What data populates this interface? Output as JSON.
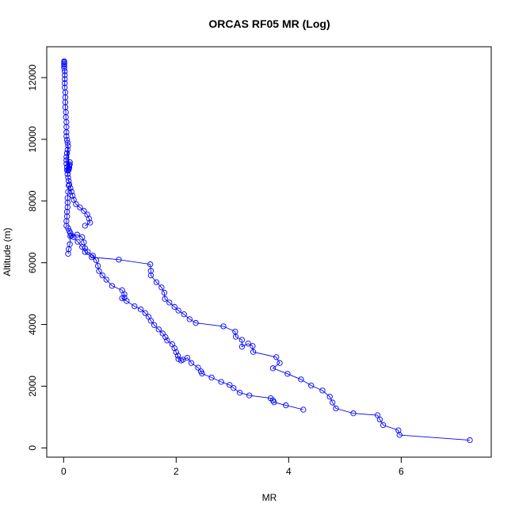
{
  "chart_data": {
    "type": "scatter",
    "title": "ORCAS RF05 MR (Log)",
    "xlabel": "MR",
    "ylabel": "Altitude (m)",
    "xlim": [
      -0.3,
      7.6
    ],
    "ylim": [
      -300,
      13000
    ],
    "xticks": [
      0,
      2,
      4,
      6
    ],
    "yticks": [
      0,
      2000,
      4000,
      6000,
      8000,
      10000,
      12000
    ],
    "color": "#0000ff",
    "marker": "open-circle",
    "connected": true,
    "series": [
      {
        "x": [
          7.22,
          5.97,
          5.95,
          5.68,
          5.62,
          5.58,
          5.15,
          4.84,
          4.78,
          4.73,
          4.6,
          4.4,
          4.22,
          3.98,
          3.72,
          3.84,
          3.78,
          3.37,
          3.36,
          3.28,
          3.17,
          3.17,
          3.06,
          3.05,
          2.84,
          2.35,
          2.24,
          2.14,
          2.04,
          1.97,
          1.88,
          1.8,
          1.79,
          1.74,
          1.65,
          1.55,
          1.55,
          1.54,
          0.98,
          0.5,
          0.38,
          0.33,
          0.25,
          0.18,
          0.14,
          0.12,
          0.1,
          0.08
        ],
        "y": [
          250,
          420,
          570,
          740,
          920,
          1060,
          1120,
          1280,
          1470,
          1660,
          1860,
          2020,
          2220,
          2400,
          2580,
          2750,
          2940,
          3110,
          3300,
          3380,
          3280,
          3500,
          3600,
          3770,
          3940,
          4050,
          4170,
          4330,
          4450,
          4570,
          4710,
          4830,
          5030,
          5200,
          5370,
          5590,
          5740,
          5950,
          6100,
          6180,
          6350,
          6510,
          6680,
          6830,
          6880,
          6960,
          7030,
          7120
        ]
      },
      {
        "x": [
          0.08,
          0.09,
          0.11,
          0.12,
          0.24,
          0.33,
          0.36,
          0.38,
          0.43,
          0.52,
          0.58,
          0.61,
          0.63,
          0.69,
          0.76,
          0.86,
          1.04,
          1.08,
          1.08,
          1.04,
          1.12,
          1.26,
          1.37,
          1.45,
          1.51,
          1.55,
          1.61,
          1.69,
          1.76,
          1.81,
          1.84,
          1.93,
          1.97,
          2.0,
          2.03,
          2.04,
          2.09,
          2.12,
          2.2,
          2.27,
          2.39,
          2.44,
          2.46,
          2.63,
          2.8,
          2.95,
          3.02,
          3.13,
          3.3,
          3.68,
          3.72,
          3.74,
          3.95,
          4.26
        ],
        "y": [
          6290,
          6440,
          6600,
          6860,
          6910,
          6830,
          6660,
          6470,
          6350,
          6230,
          6080,
          5900,
          5730,
          5590,
          5450,
          5250,
          5110,
          4980,
          4870,
          4850,
          4760,
          4590,
          4490,
          4370,
          4250,
          4120,
          3980,
          3840,
          3710,
          3590,
          3480,
          3360,
          3230,
          3100,
          2990,
          2880,
          2830,
          2860,
          2920,
          2750,
          2600,
          2480,
          2410,
          2280,
          2140,
          2040,
          1940,
          1790,
          1700,
          1610,
          1540,
          1480,
          1380,
          1240
        ]
      },
      {
        "x": [
          0.38,
          0.47,
          0.45,
          0.42,
          0.36,
          0.29,
          0.22,
          0.18,
          0.16,
          0.14,
          0.12,
          0.1,
          0.09,
          0.08,
          0.07,
          0.06,
          0.06,
          0.05,
          0.05,
          0.05,
          0.06,
          0.07,
          0.08,
          0.09,
          0.1,
          0.11,
          0.11,
          0.1,
          0.09,
          0.08,
          0.07,
          0.06,
          0.05,
          0.05,
          0.05,
          0.05,
          0.04,
          0.04,
          0.03,
          0.03,
          0.03,
          0.03,
          0.02,
          0.02,
          0.02,
          0.02,
          0.02,
          0.01,
          0.01,
          0.01,
          0.01,
          0.01,
          0.01
        ],
        "y": [
          7200,
          7300,
          7430,
          7560,
          7680,
          7790,
          7900,
          8040,
          8170,
          8300,
          8420,
          8540,
          8650,
          8760,
          8870,
          9000,
          9100,
          9210,
          9320,
          9430,
          9550,
          9660,
          9790,
          9010,
          9080,
          9190,
          9260,
          9150,
          9050,
          8980,
          9890,
          9980,
          10100,
          10230,
          10400,
          10560,
          10720,
          10880,
          11040,
          11200,
          11360,
          11520,
          11680,
          11820,
          11950,
          12080,
          12200,
          12300,
          12370,
          12420,
          12460,
          12500,
          12530
        ]
      },
      {
        "x": [
          0.05,
          0.05,
          0.06,
          0.06,
          0.07,
          0.07,
          0.07,
          0.08,
          0.09
        ],
        "y": [
          7200,
          7350,
          7500,
          7650,
          7800,
          7950,
          8100,
          8300,
          8500
        ]
      }
    ]
  }
}
